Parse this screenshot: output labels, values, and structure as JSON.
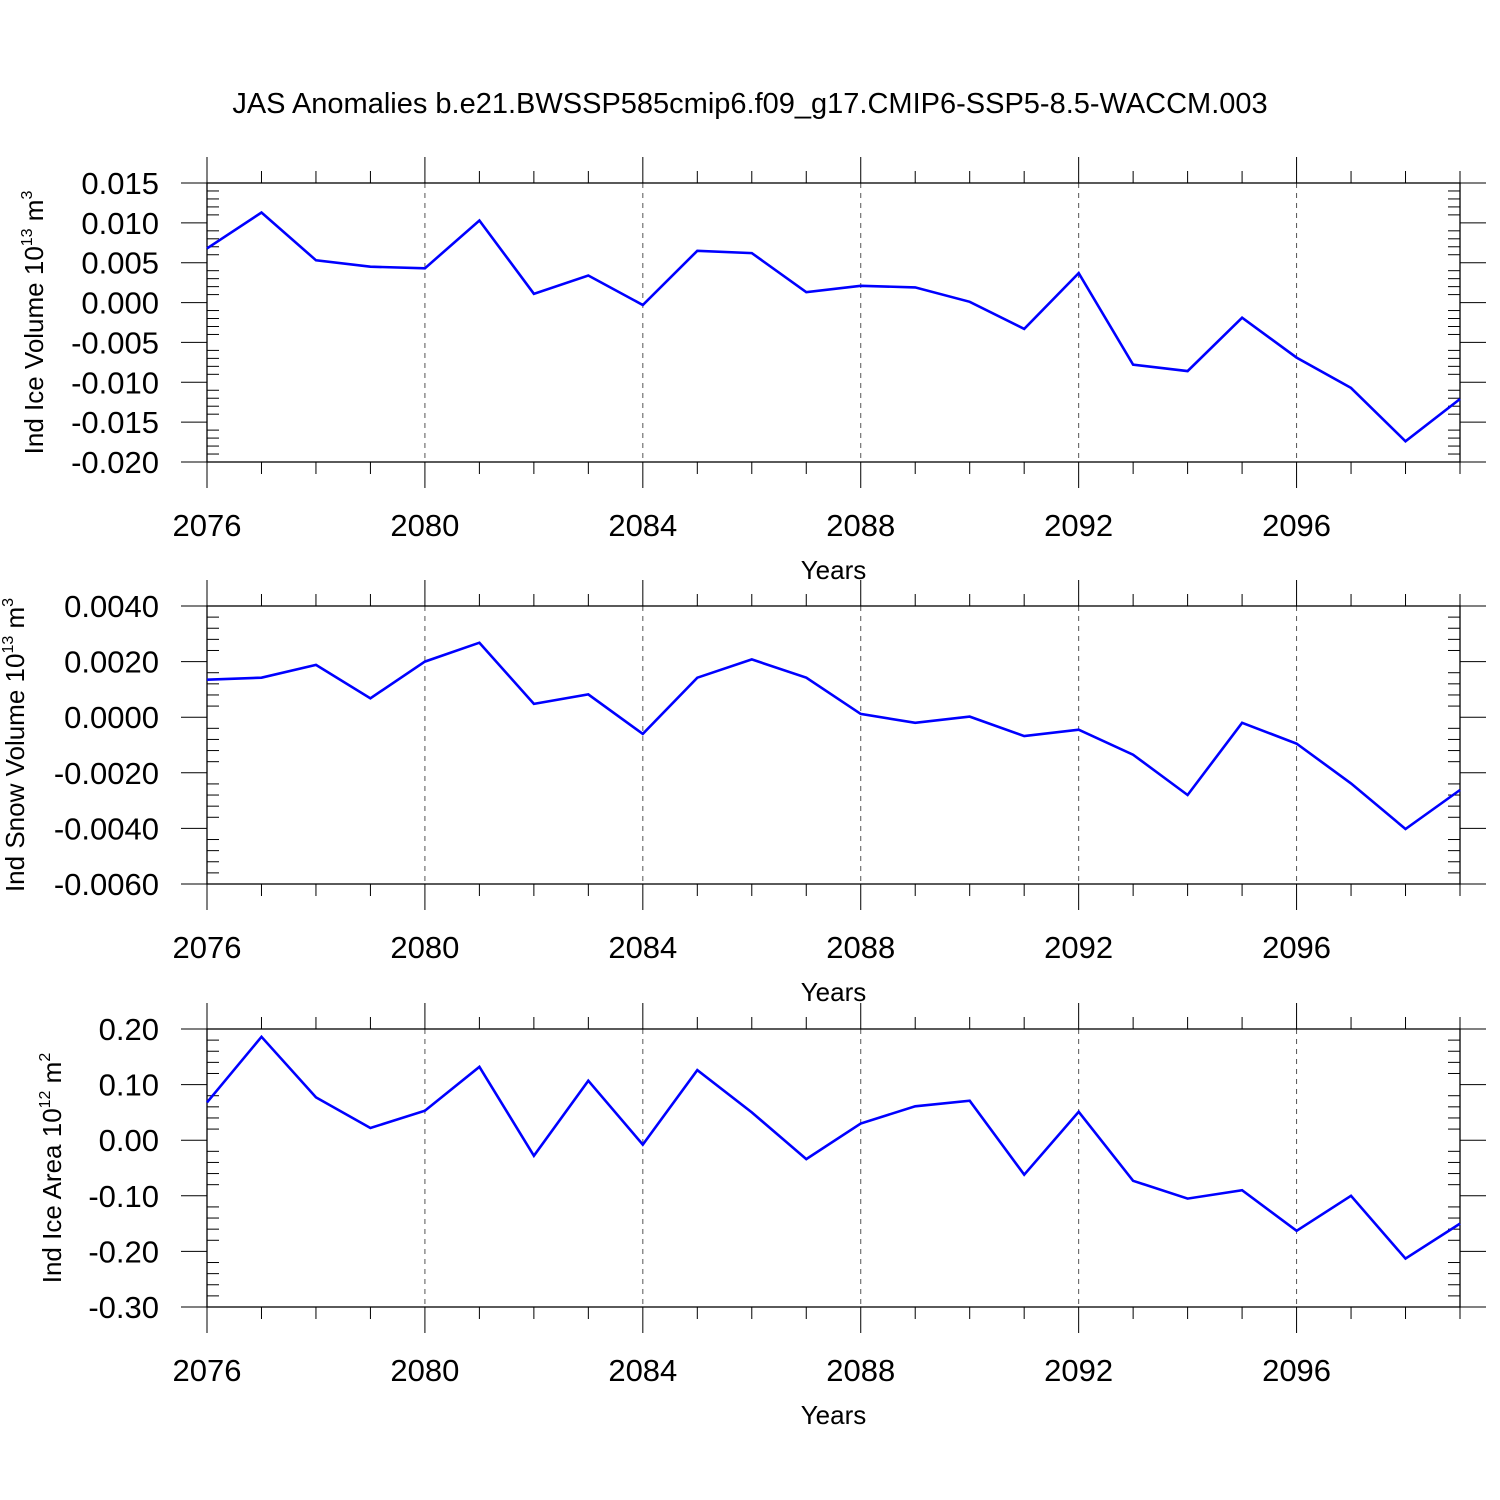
{
  "title": "JAS Anomalies b.e21.BWSSP585cmip6.f09_g17.CMIP6-SSP5-8.5-WACCM.003",
  "chart_data": [
    {
      "type": "line",
      "ylabel": "Ind Ice Volume 10",
      "ylabel_exp": "13",
      "ylabel_unit": " m",
      "ylabel_unit_exp": "3",
      "xlabel": "Years",
      "x": [
        2076,
        2077,
        2078,
        2079,
        2080,
        2081,
        2082,
        2083,
        2084,
        2085,
        2086,
        2087,
        2088,
        2089,
        2090,
        2091,
        2092,
        2093,
        2094,
        2095,
        2096,
        2097,
        2098,
        2099
      ],
      "series": [
        {
          "values": [
            0.0068,
            0.0113,
            0.0053,
            0.0045,
            0.0043,
            0.0103,
            0.0011,
            0.0034,
            -0.0003,
            0.0065,
            0.0062,
            0.0013,
            0.0021,
            0.0019,
            0.0001,
            -0.0033,
            0.0037,
            -0.0078,
            -0.0086,
            -0.0019,
            -0.0069,
            -0.0107,
            -0.0174,
            -0.0121
          ]
        }
      ],
      "xlim": [
        2076,
        2099
      ],
      "ylim": [
        -0.02,
        0.015
      ],
      "yticks": [
        -0.02,
        -0.015,
        -0.01,
        -0.005,
        0.0,
        0.005,
        0.01,
        0.015
      ],
      "ytick_labels": [
        "-0.020",
        "-0.015",
        "-0.010",
        "-0.005",
        "0.000",
        "0.005",
        "0.010",
        "0.015"
      ],
      "xticks": [
        2076,
        2080,
        2084,
        2088,
        2092,
        2096
      ],
      "xtick_labels": [
        "2076",
        "2080",
        "2084",
        "2088",
        "2092",
        "2096"
      ],
      "grid": "vertical dashed at major x ticks",
      "color": "#0000ff"
    },
    {
      "type": "line",
      "ylabel": "Ind Snow Volume 10",
      "ylabel_exp": "13",
      "ylabel_unit": " m",
      "ylabel_unit_exp": "3",
      "xlabel": "Years",
      "x": [
        2076,
        2077,
        2078,
        2079,
        2080,
        2081,
        2082,
        2083,
        2084,
        2085,
        2086,
        2087,
        2088,
        2089,
        2090,
        2091,
        2092,
        2093,
        2094,
        2095,
        2096,
        2097,
        2098,
        2099
      ],
      "series": [
        {
          "values": [
            0.00135,
            0.00142,
            0.00188,
            0.00068,
            0.002,
            0.00268,
            0.00048,
            0.00082,
            -0.0006,
            0.00142,
            0.00208,
            0.00142,
            0.00012,
            -0.0002,
            2e-05,
            -0.00068,
            -0.00045,
            -0.00135,
            -0.0028,
            -0.0002,
            -0.00095,
            -0.00238,
            -0.00402,
            -0.00262
          ]
        }
      ],
      "xlim": [
        2076,
        2099
      ],
      "ylim": [
        -0.006,
        0.004
      ],
      "yticks": [
        -0.006,
        -0.004,
        -0.002,
        0.0,
        0.002,
        0.004
      ],
      "ytick_labels": [
        "-0.0060",
        "-0.0040",
        "-0.0020",
        "0.0000",
        "0.0020",
        "0.0040"
      ],
      "xticks": [
        2076,
        2080,
        2084,
        2088,
        2092,
        2096
      ],
      "xtick_labels": [
        "2076",
        "2080",
        "2084",
        "2088",
        "2092",
        "2096"
      ],
      "grid": "vertical dashed at major x ticks",
      "color": "#0000ff"
    },
    {
      "type": "line",
      "ylabel": "Ind Ice Area 10",
      "ylabel_exp": "12",
      "ylabel_unit": " m",
      "ylabel_unit_exp": "2",
      "xlabel": "Years",
      "x": [
        2076,
        2077,
        2078,
        2079,
        2080,
        2081,
        2082,
        2083,
        2084,
        2085,
        2086,
        2087,
        2088,
        2089,
        2090,
        2091,
        2092,
        2093,
        2094,
        2095,
        2096,
        2097,
        2098,
        2099
      ],
      "series": [
        {
          "values": [
            0.068,
            0.186,
            0.077,
            0.022,
            0.053,
            0.132,
            -0.028,
            0.107,
            -0.008,
            0.126,
            0.05,
            -0.034,
            0.03,
            0.061,
            0.071,
            -0.062,
            0.051,
            -0.073,
            -0.105,
            -0.09,
            -0.163,
            -0.1,
            -0.213,
            -0.15
          ]
        }
      ],
      "xlim": [
        2076,
        2099
      ],
      "ylim": [
        -0.3,
        0.2
      ],
      "yticks": [
        -0.3,
        -0.2,
        -0.1,
        0.0,
        0.1,
        0.2
      ],
      "ytick_labels": [
        "-0.30",
        "-0.20",
        "-0.10",
        "0.00",
        "0.10",
        "0.20"
      ],
      "xticks": [
        2076,
        2080,
        2084,
        2088,
        2092,
        2096
      ],
      "xtick_labels": [
        "2076",
        "2080",
        "2084",
        "2088",
        "2092",
        "2096"
      ],
      "grid": "vertical dashed at major x ticks",
      "color": "#0000ff"
    }
  ]
}
